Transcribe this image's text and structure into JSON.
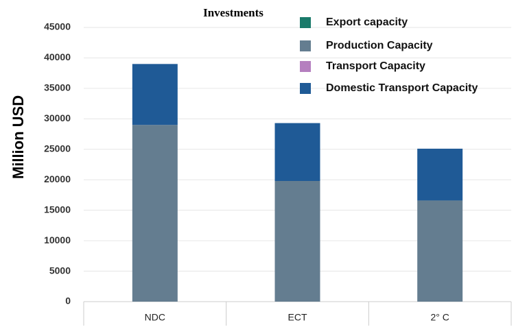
{
  "chart_data": {
    "type": "stacked_bar",
    "title": "Investments",
    "y_label": "Million USD",
    "categories": [
      "NDC",
      "ECT",
      "2° C"
    ],
    "series": [
      {
        "name": "Export capacity",
        "color": "#1a7a6a",
        "values": [
          0,
          0,
          0
        ]
      },
      {
        "name": "Production Capacity",
        "color": "#647d90",
        "values": [
          29000,
          19800,
          16600
        ]
      },
      {
        "name": "Transport Capacity",
        "color": "#b57fbf",
        "values": [
          0,
          0,
          0
        ]
      },
      {
        "name": "Domestic Transport Capacity",
        "color": "#1f5a96",
        "values": [
          10000,
          9500,
          8500
        ]
      }
    ],
    "ylim": [
      0,
      45000
    ],
    "yticks": [
      0,
      5000,
      10000,
      15000,
      20000,
      25000,
      30000,
      35000,
      40000,
      45000
    ],
    "grid": true
  }
}
